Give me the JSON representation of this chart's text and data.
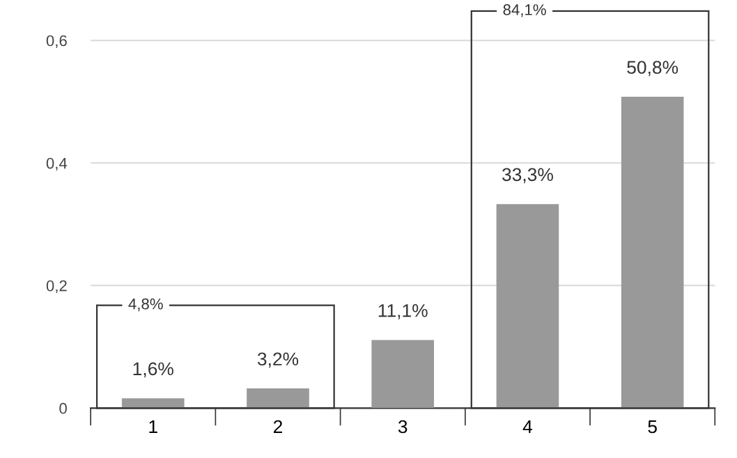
{
  "chart_data": {
    "type": "bar",
    "categories": [
      "1",
      "2",
      "3",
      "4",
      "5"
    ],
    "values": [
      0.016,
      0.032,
      0.111,
      0.333,
      0.508
    ],
    "value_labels": [
      "1,6%",
      "3,2%",
      "11,1%",
      "33,3%",
      "50,8%"
    ],
    "color": "#999999",
    "ylim": [
      0,
      0.666
    ],
    "yticks": [
      {
        "value": 0,
        "label": "0"
      },
      {
        "value": 0.2,
        "label": "0,2"
      },
      {
        "value": 0.4,
        "label": "0,4"
      },
      {
        "value": 0.6,
        "label": "0,6"
      }
    ],
    "grid": "y",
    "annotations": [
      "4,8%",
      "84,1%"
    ]
  }
}
